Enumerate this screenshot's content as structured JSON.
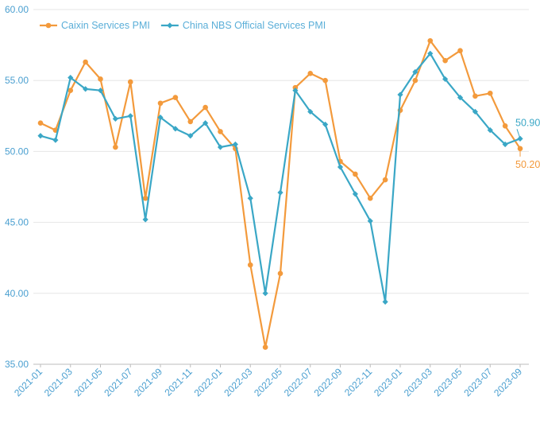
{
  "chart_data": {
    "type": "line",
    "x": [
      "2021-01",
      "2021-02",
      "2021-03",
      "2021-04",
      "2021-05",
      "2021-06",
      "2021-07",
      "2021-08",
      "2021-09",
      "2021-10",
      "2021-11",
      "2021-12",
      "2022-01",
      "2022-02",
      "2022-03",
      "2022-04",
      "2022-05",
      "2022-06",
      "2022-07",
      "2022-08",
      "2022-09",
      "2022-10",
      "2022-11",
      "2022-12",
      "2023-01",
      "2023-02",
      "2023-03",
      "2023-04",
      "2023-05",
      "2023-06",
      "2023-07",
      "2023-08",
      "2023-09"
    ],
    "x_tick_labels": [
      "2021-01",
      "2021-03",
      "2021-05",
      "2021-07",
      "2021-09",
      "2021-11",
      "2022-01",
      "2022-03",
      "2022-05",
      "2022-07",
      "2022-09",
      "2022-11",
      "2023-01",
      "2023-03",
      "2023-05",
      "2023-07",
      "2023-09"
    ],
    "series": [
      {
        "name": "Caixin Services PMI",
        "color": "#f39a3c",
        "marker": "circle",
        "values": [
          52.0,
          51.5,
          54.3,
          56.3,
          55.1,
          50.3,
          54.9,
          46.7,
          53.4,
          53.8,
          52.1,
          53.1,
          51.4,
          50.2,
          42.0,
          36.2,
          41.4,
          54.5,
          55.5,
          55.0,
          49.3,
          48.4,
          46.7,
          48.0,
          52.9,
          55.0,
          57.8,
          56.4,
          57.1,
          53.9,
          54.1,
          51.8,
          50.2
        ]
      },
      {
        "name": "China NBS Official Services PMI",
        "color": "#3aa7c6",
        "marker": "diamond",
        "values": [
          51.1,
          50.8,
          55.2,
          54.4,
          54.3,
          52.3,
          52.5,
          45.2,
          52.4,
          51.6,
          51.1,
          52.0,
          50.3,
          50.5,
          46.7,
          40.0,
          47.1,
          54.3,
          52.8,
          51.9,
          48.9,
          47.0,
          45.1,
          39.4,
          54.0,
          55.6,
          56.9,
          55.1,
          53.8,
          52.8,
          51.5,
          50.5,
          50.9
        ]
      }
    ],
    "ylim": [
      35,
      60
    ],
    "y_ticks": [
      "35.00",
      "40.00",
      "45.00",
      "50.00",
      "55.00",
      "60.00"
    ],
    "end_labels": [
      {
        "series": 1,
        "text": "50.90"
      },
      {
        "series": 0,
        "text": "50.20"
      }
    ],
    "legend": {
      "placement": "top-left"
    },
    "grid": "horizontal"
  }
}
